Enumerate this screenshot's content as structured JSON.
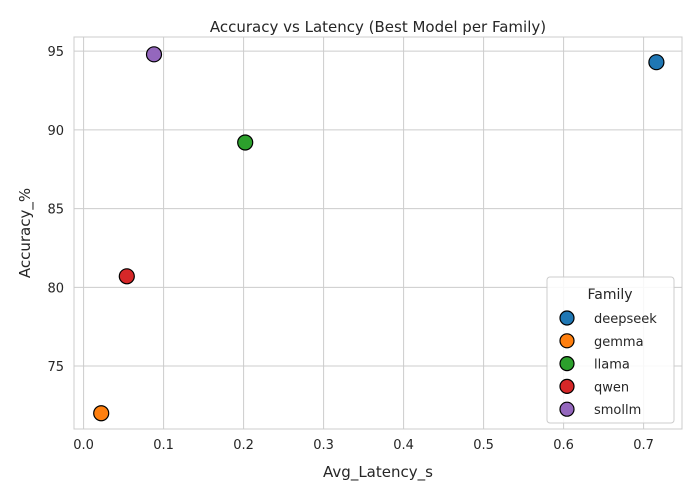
{
  "chart_data": {
    "type": "scatter",
    "title": "Accuracy vs Latency (Best Model per Family)",
    "xlabel": "Avg_Latency_s",
    "ylabel": "Accuracy_%",
    "xlim": [
      -0.012,
      0.748
    ],
    "ylim": [
      71.0,
      95.9
    ],
    "xticks": [
      0.0,
      0.1,
      0.2,
      0.3,
      0.4,
      0.5,
      0.6,
      0.7
    ],
    "yticks": [
      75,
      80,
      85,
      90,
      95
    ],
    "grid": true,
    "legend": {
      "title": "Family",
      "placement": "lower-right"
    },
    "series": [
      {
        "name": "deepseek",
        "color": "#1f77b4",
        "x": 0.716,
        "y": 94.3
      },
      {
        "name": "gemma",
        "color": "#ff7f0e",
        "x": 0.022,
        "y": 72.0
      },
      {
        "name": "llama",
        "color": "#2ca02c",
        "x": 0.202,
        "y": 89.2
      },
      {
        "name": "qwen",
        "color": "#d62728",
        "x": 0.054,
        "y": 80.7
      },
      {
        "name": "smollm",
        "color": "#9467bd",
        "x": 0.088,
        "y": 94.8
      }
    ]
  }
}
